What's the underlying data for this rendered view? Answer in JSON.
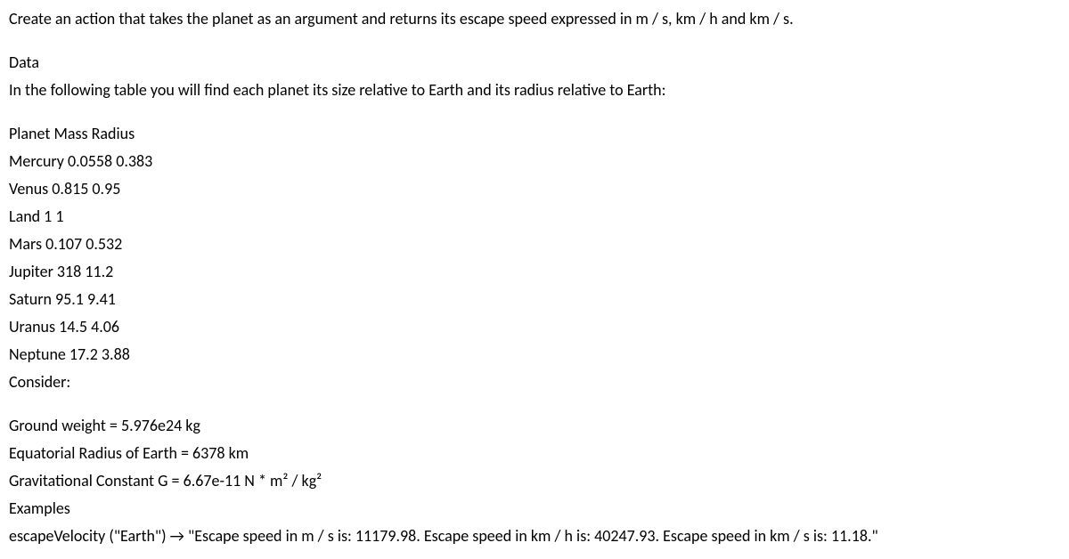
{
  "intro": "Create an action that takes the planet as an argument and returns its escape speed expressed in m / s, km / h and km / s.",
  "data_heading": "Data",
  "data_desc": "In the following table you will find each planet its size relative to Earth and its radius relative to Earth:",
  "table_header": "Planet Mass Radius",
  "planets": [
    {
      "name": "Mercury",
      "mass": "0.0558",
      "radius": "0.383"
    },
    {
      "name": "Venus",
      "mass": "0.815",
      "radius": "0.95"
    },
    {
      "name": "Land",
      "mass": "1",
      "radius": "1"
    },
    {
      "name": "Mars",
      "mass": "0.107",
      "radius": "0.532"
    },
    {
      "name": "Jupiter",
      "mass": "318",
      "radius": "11.2"
    },
    {
      "name": "Saturn",
      "mass": "95.1",
      "radius": "9.41"
    },
    {
      "name": "Uranus",
      "mass": "14.5",
      "radius": "4.06"
    },
    {
      "name": "Neptune",
      "mass": "17.2",
      "radius": "3.88"
    }
  ],
  "consider": "Consider:",
  "ground_weight": "Ground weight = 5.976e24 kg",
  "earth_radius": "Equatorial Radius of Earth = 6378 km",
  "grav_constant": "Gravitational Constant G = 6.67e-11 N * m² / kg²",
  "examples": "Examples",
  "example_call": "escapeVelocity (\"Earth\") → \"Escape speed in m / s is: 11179.98. Escape speed in km / h is: 40247.93. Escape speed in km / s is: 11.18.\""
}
